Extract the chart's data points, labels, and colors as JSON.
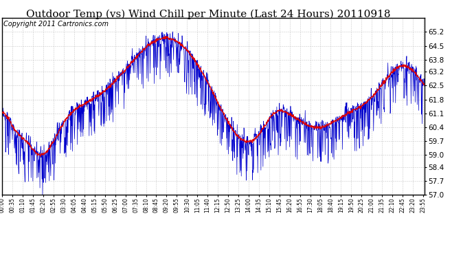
{
  "title": "Outdoor Temp (vs) Wind Chill per Minute (Last 24 Hours) 20110918",
  "copyright": "Copyright 2011 Cartronics.com",
  "ylim": [
    57.0,
    65.9
  ],
  "yticks": [
    57.0,
    57.7,
    58.4,
    59.0,
    59.7,
    60.4,
    61.1,
    61.8,
    62.5,
    63.2,
    63.8,
    64.5,
    65.2
  ],
  "background_color": "#ffffff",
  "grid_color": "#bbbbbb",
  "line_color_red": "#dd0000",
  "line_color_blue": "#0000cc",
  "title_fontsize": 11,
  "copyright_fontsize": 7,
  "n_points": 1440,
  "x_tick_interval": 35,
  "border_color": "#000000"
}
